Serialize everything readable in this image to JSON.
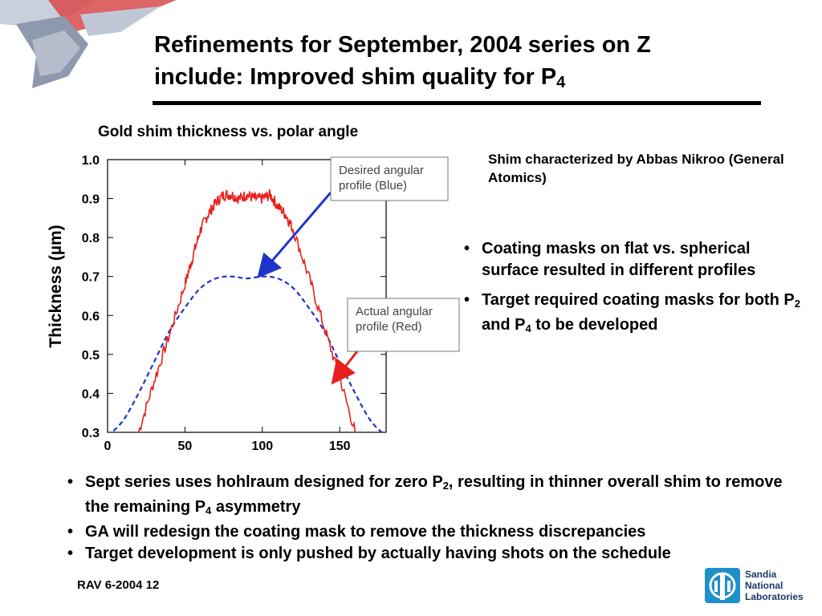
{
  "slide": {
    "title_line1": "Refinements for September, 2004 series on Z",
    "title_line2_prefix": "include: Improved shim quality for P",
    "title_line2_sub": "4",
    "side_note": "Shim characterized by Abbas Nikroo (General Atomics)",
    "right_bullets": [
      {
        "text": "Coating masks on flat vs. spherical surface resulted in different profiles"
      },
      {
        "parts": [
          "Target required coating masks for both P",
          "2",
          " and P",
          "4",
          " to be developed"
        ]
      }
    ],
    "bottom_bullets": [
      {
        "parts": [
          "Sept series uses hohlraum designed for zero P",
          "2",
          ", resulting in thinner overall shim to remove the remaining P",
          "4",
          " asymmetry"
        ]
      },
      {
        "text": "GA will redesign the coating mask to remove the thickness discrepancies"
      },
      {
        "text": "Target development is only pushed by actually having shots on the schedule"
      }
    ],
    "footer": "RAV 6-2004 12",
    "logo_lines": [
      "Sandia",
      "National",
      "Laboratories"
    ],
    "colors": {
      "red_series": "#e8201c",
      "blue_series": "#1f35c8",
      "arrow_blue": "#1f35c8",
      "arrow_red": "#e8201c",
      "logo_blue": "#1f8fc8"
    }
  },
  "chart_data": {
    "type": "line",
    "title": "Gold shim thickness vs. polar angle",
    "xlabel": "",
    "ylabel": "Thickness (µm)",
    "xlim": [
      0,
      180
    ],
    "ylim": [
      0.3,
      1.0
    ],
    "x_ticks": [
      "0",
      "50",
      "100",
      "150"
    ],
    "y_ticks": [
      "1.0",
      "0.9",
      "0.8",
      "0.7",
      "0.6",
      "0.5",
      "0.4",
      "0.3"
    ],
    "annotations": [
      "Desired angular profile (Blue)",
      "Actual angular profile (Red)"
    ],
    "series": [
      {
        "color": "#1f35c8",
        "style": "dashed",
        "x": [
          0,
          10,
          20,
          30,
          40,
          50,
          60,
          70,
          80,
          90,
          100,
          110,
          120,
          130,
          140,
          150,
          160,
          170,
          180
        ],
        "y": [
          0.29,
          0.33,
          0.4,
          0.48,
          0.56,
          0.62,
          0.67,
          0.695,
          0.7,
          0.695,
          0.7,
          0.695,
          0.67,
          0.62,
          0.56,
          0.48,
          0.4,
          0.33,
          0.29
        ]
      },
      {
        "color": "#e8201c",
        "style": "solid",
        "x": [
          20,
          30,
          40,
          50,
          55,
          60,
          65,
          70,
          75,
          80,
          85,
          90,
          95,
          100,
          105,
          110,
          115,
          120,
          130,
          140,
          150,
          160
        ],
        "y": [
          0.3,
          0.43,
          0.55,
          0.68,
          0.75,
          0.82,
          0.86,
          0.89,
          0.91,
          0.91,
          0.9,
          0.91,
          0.9,
          0.9,
          0.91,
          0.88,
          0.86,
          0.82,
          0.7,
          0.57,
          0.44,
          0.3
        ]
      }
    ]
  }
}
